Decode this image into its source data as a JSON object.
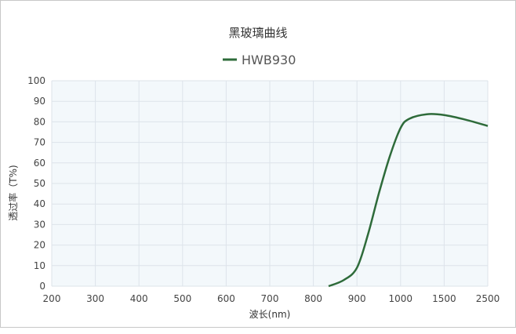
{
  "chart_data": {
    "type": "line",
    "title": "黑玻璃曲线",
    "xlabel": "波长(nm)",
    "ylabel": "透过率（T%)",
    "x_ticks": [
      "200",
      "300",
      "400",
      "500",
      "600",
      "700",
      "800",
      "900",
      "1000",
      "1500",
      "2500"
    ],
    "ylim": [
      0,
      100
    ],
    "y_ticks": [
      0,
      10,
      20,
      30,
      40,
      50,
      60,
      70,
      80,
      90,
      100
    ],
    "grid": true,
    "legend": "top-center",
    "series": [
      {
        "name": "HWB930",
        "color": "#2e6b3a",
        "points": [
          [
            835,
            0
          ],
          [
            870,
            3
          ],
          [
            900,
            9
          ],
          [
            925,
            25
          ],
          [
            950,
            45
          ],
          [
            975,
            63
          ],
          [
            1000,
            77
          ],
          [
            1100,
            81.5
          ],
          [
            1300,
            83.7
          ],
          [
            1500,
            83.3
          ],
          [
            2000,
            81
          ],
          [
            2500,
            78
          ]
        ]
      }
    ],
    "plot_background": "#f3f8fb"
  }
}
